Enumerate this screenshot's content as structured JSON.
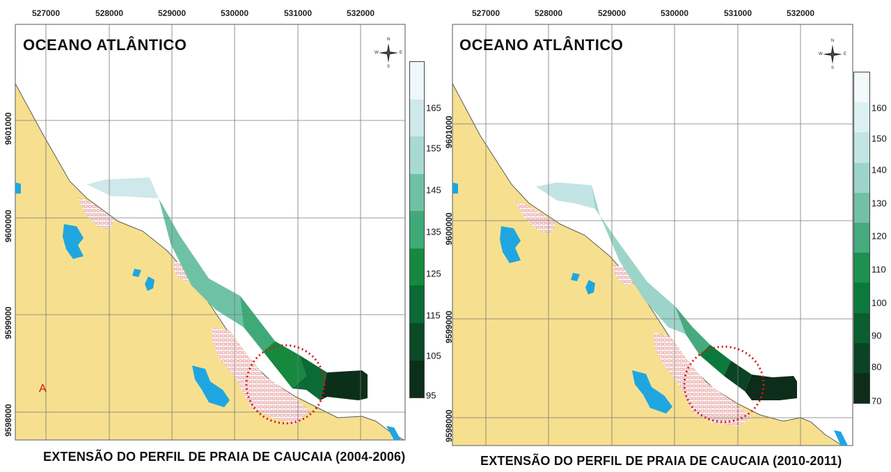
{
  "panel_a": {
    "ocean_label": "OCEANO ATLÂNTICO",
    "panel_letter": "A",
    "x_ticks": [
      "527000",
      "528000",
      "529000",
      "530000",
      "531000",
      "532000"
    ],
    "y_ticks": [
      "9601000",
      "9600000",
      "9599000",
      "9598000"
    ],
    "legend_ticks": [
      "165",
      "155",
      "145",
      "135",
      "125",
      "115",
      "105",
      "95"
    ],
    "title": "EXTENSÃO DO PERFIL DE PRAIA DE CAUCAIA (2004-2006)",
    "compass": {
      "n": "N",
      "s": "S",
      "e": "E",
      "w": "W"
    }
  },
  "panel_b": {
    "ocean_label": "OCEANO ATLÂNTICO",
    "x_ticks": [
      "527000",
      "528000",
      "529000",
      "530000",
      "531000",
      "532000"
    ],
    "y_ticks": [
      "9601000",
      "9600000",
      "9599000",
      "9598000"
    ],
    "legend_ticks": [
      "160",
      "150",
      "140",
      "130",
      "120",
      "110",
      "100",
      "90",
      "80",
      "70"
    ],
    "title": "EXTENSÃO DO PERFIL DE PRAIA DE CAUCAIA (2010-2011)",
    "compass": {
      "n": "N",
      "s": "S",
      "e": "E",
      "w": "W"
    }
  },
  "colors": {
    "land": "#f6e08f",
    "water": "#1fa6e0",
    "urban": "#e79a9a",
    "grid": "#777777",
    "highlight_circle": "#d01818"
  },
  "legend_colors_a": [
    "#eef7f9",
    "#cfe8eb",
    "#a8d9d3",
    "#6fc1a6",
    "#3faa77",
    "#16893f",
    "#0b6a35",
    "#0a4a26",
    "#0c2f1a"
  ],
  "legend_colors_b": [
    "#f2fafb",
    "#dcf0f2",
    "#c2e4e4",
    "#9dd4c9",
    "#74c0a7",
    "#47aa7f",
    "#1c9150",
    "#0a7a3c",
    "#0a5e2f",
    "#0b4325",
    "#0e2c1a"
  ]
}
